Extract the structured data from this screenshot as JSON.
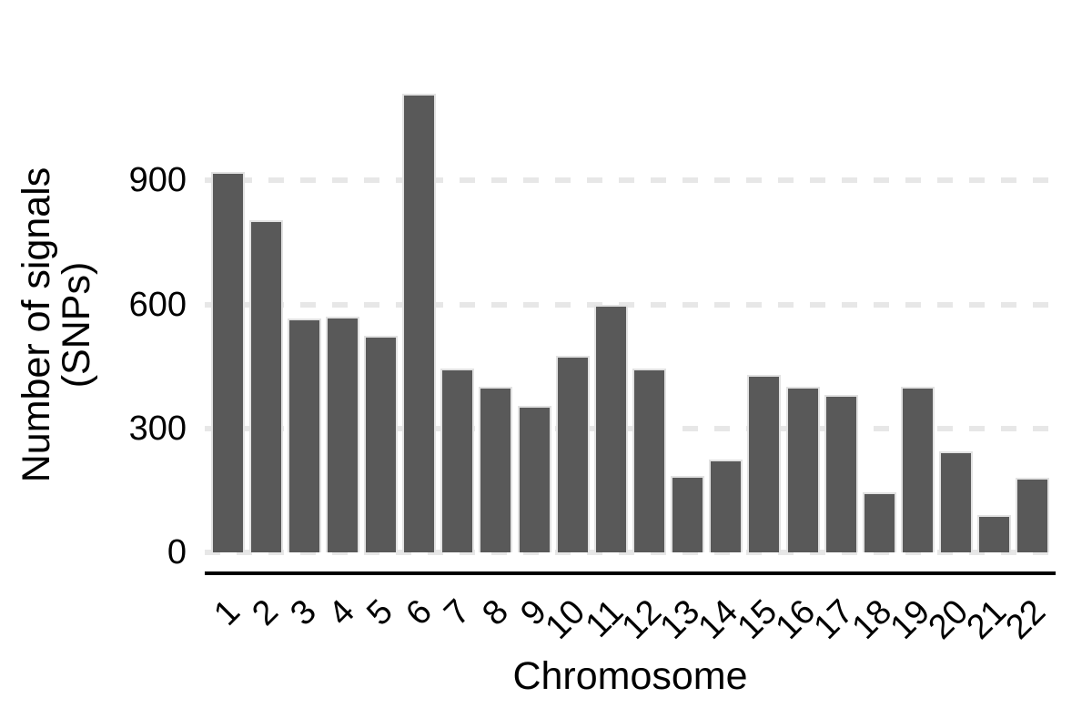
{
  "chart_data": {
    "type": "bar",
    "title": "",
    "xlabel": "Chromosome",
    "ylabel": "Number of signals (SNPs)",
    "ylabel_lines": [
      "Number of signals",
      "(SNPs)"
    ],
    "categories": [
      "1",
      "2",
      "3",
      "4",
      "5",
      "6",
      "7",
      "8",
      "9",
      "10",
      "11",
      "12",
      "13",
      "14",
      "15",
      "16",
      "17",
      "18",
      "19",
      "20",
      "21",
      "22"
    ],
    "values": [
      920,
      805,
      565,
      570,
      525,
      1110,
      445,
      400,
      355,
      475,
      600,
      445,
      185,
      225,
      430,
      400,
      380,
      145,
      400,
      245,
      90,
      180
    ],
    "yticks": [
      0,
      300,
      600,
      900
    ],
    "ylim": [
      0,
      1150
    ],
    "grid": "horizontal-dashed",
    "legend": "none",
    "bar_color": "#595959",
    "bar_border_color": "#e2e2e2",
    "gridline_color": "#e7e7e7",
    "axis_line_color": "#000000",
    "text_color": "#000000",
    "background_color": "#ffffff"
  }
}
